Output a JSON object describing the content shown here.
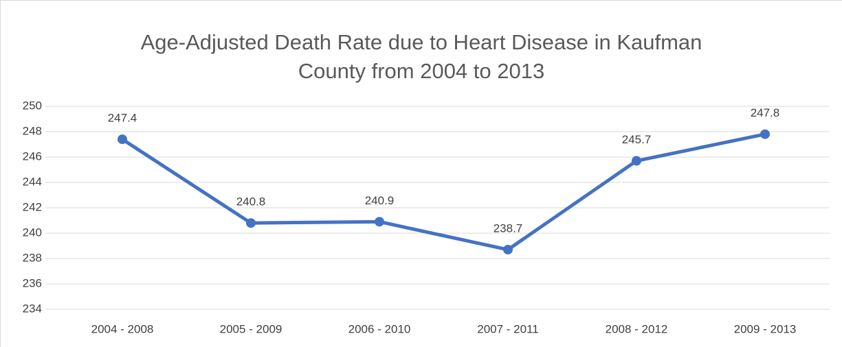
{
  "chart_data": {
    "type": "line",
    "title": "Age-Adjusted Death Rate due to Heart Disease in Kaufman County from 2004 to 2013",
    "categories": [
      "2004 - 2008",
      "2005 - 2009",
      "2006 - 2010",
      "2007 - 2011",
      "2008 - 2012",
      "2009 - 2013"
    ],
    "values": [
      247.4,
      240.8,
      240.9,
      238.7,
      245.7,
      247.8
    ],
    "color": "#4472c4",
    "ylim": [
      234,
      250
    ],
    "yticks": [
      234,
      236,
      238,
      240,
      242,
      244,
      246,
      248,
      250
    ],
    "grid": true,
    "data_labels": true
  }
}
